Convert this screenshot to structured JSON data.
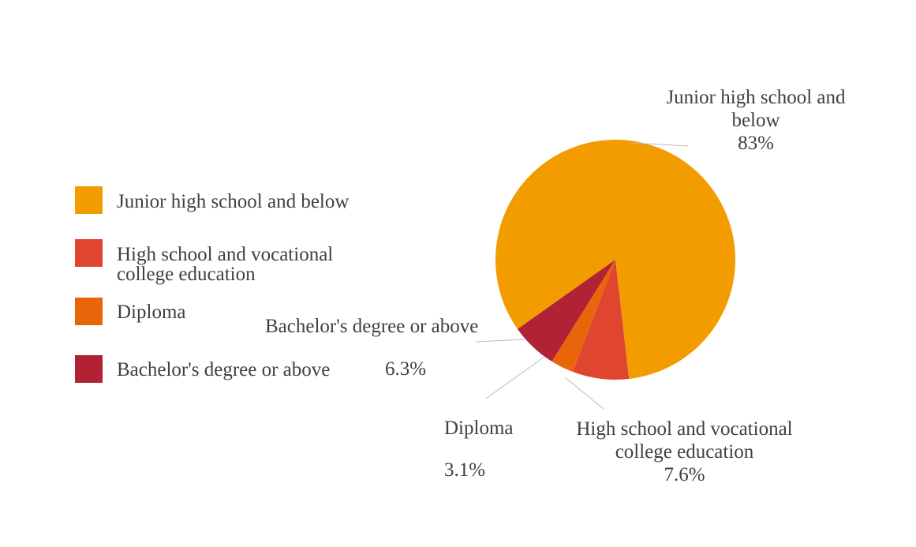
{
  "chart_data": {
    "type": "pie",
    "categories": [
      "Junior high school and below",
      "High school and vocational college education",
      "Diploma",
      "Bachelor's degree or above"
    ],
    "values": [
      83,
      7.6,
      3.1,
      6.3
    ],
    "value_labels": [
      "83%",
      "7.6%",
      "3.1%",
      "6.3%"
    ],
    "colors": [
      "#f39c00",
      "#e04530",
      "#e8650a",
      "#b02234"
    ]
  }
}
